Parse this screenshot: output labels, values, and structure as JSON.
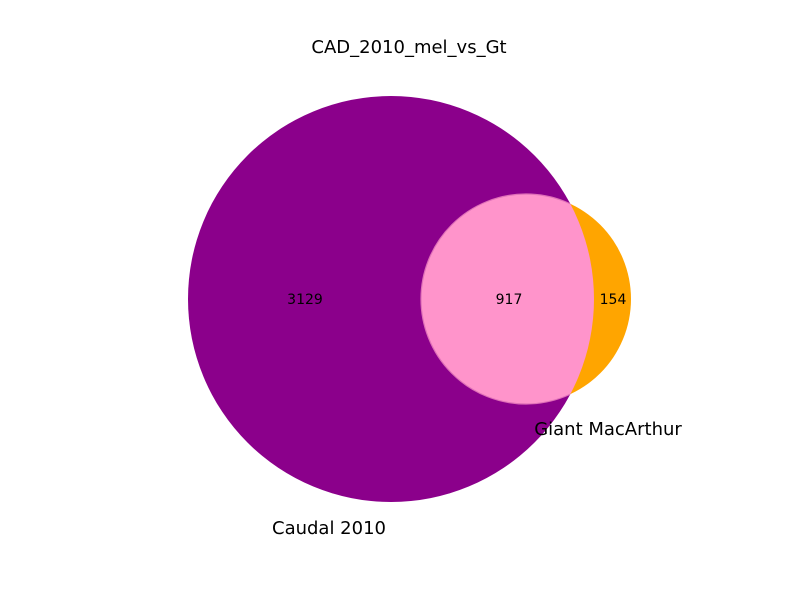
{
  "chart_data": {
    "type": "venn",
    "title": "CAD_2010_mel_vs_Gt",
    "sets": [
      {
        "name": "Caudal 2010",
        "only_count": "3129",
        "color": "#8B008B"
      },
      {
        "name": "Giant MacArthur",
        "only_count": "154",
        "color": "#FFA500"
      }
    ],
    "intersection": {
      "count": "917",
      "color": "#FF94CB"
    }
  }
}
